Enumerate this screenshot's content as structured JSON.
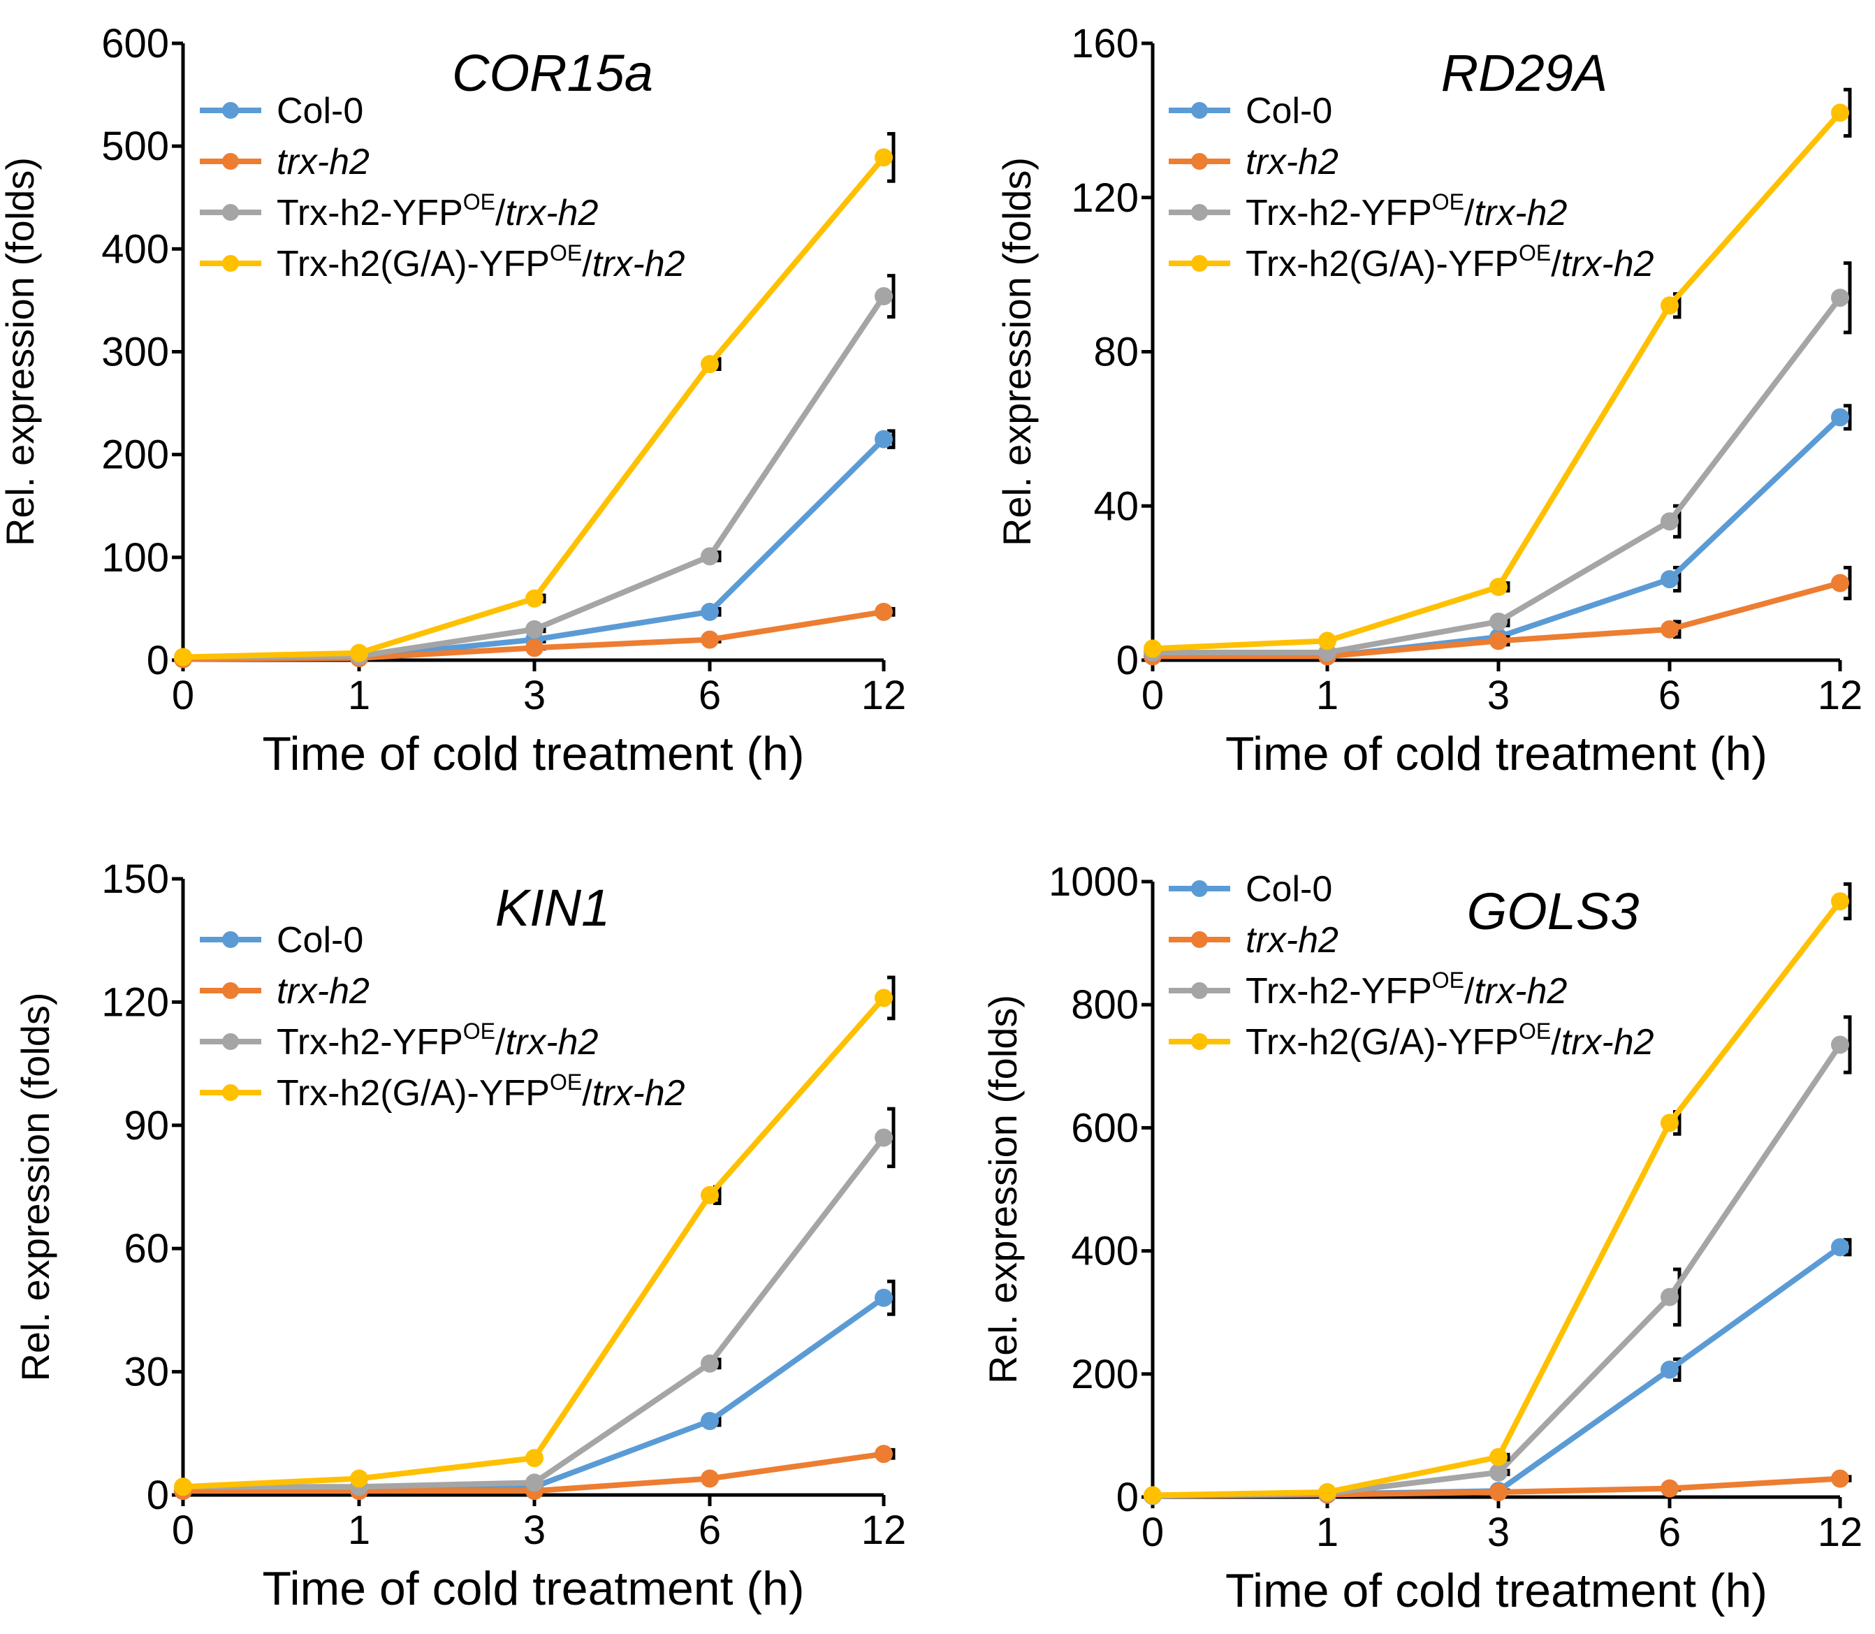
{
  "chart_data": [
    {
      "type": "line",
      "title": "COR15a",
      "xlabel": "Time of cold treatment (h)",
      "ylabel": "Rel. expression (folds)",
      "categories": [
        "0",
        "1",
        "3",
        "6",
        "12"
      ],
      "ylim": [
        0,
        600
      ],
      "yticks": [
        "0",
        "100",
        "200",
        "300",
        "400",
        "500",
        "600"
      ],
      "legend_position": "top-left",
      "series": [
        {
          "name": "Col-0",
          "name_parts": [
            "Col-0"
          ],
          "color": "#5B9BD5",
          "values": [
            2,
            3,
            20,
            47,
            215
          ],
          "errors": [
            0,
            0,
            2,
            3,
            8
          ]
        },
        {
          "name": "trx-h2",
          "name_parts": [
            "trx-h2"
          ],
          "color": "#ED7D31",
          "values": [
            1,
            2,
            12,
            20,
            47
          ],
          "errors": [
            0,
            0,
            1,
            2,
            3
          ]
        },
        {
          "name": "Trx-h2-YFPOE/trx-h2",
          "name_parts": [
            "Trx-h2-YFP",
            "OE",
            "/",
            "trx-h2"
          ],
          "color": "#A5A5A5",
          "values": [
            3,
            4,
            30,
            101,
            354
          ],
          "errors": [
            0,
            0,
            2,
            4,
            20
          ]
        },
        {
          "name": "Trx-h2(G/A)-YFPOE/trx-h2",
          "name_parts": [
            "Trx-h2(G/A)-YFP",
            "OE",
            "/",
            "trx-h2"
          ],
          "color": "#FFC000",
          "values": [
            3,
            7,
            60,
            288,
            489
          ],
          "errors": [
            0,
            0,
            3,
            5,
            23
          ]
        }
      ]
    },
    {
      "type": "line",
      "title": "RD29A",
      "xlabel": "Time of cold treatment (h)",
      "ylabel": "Rel. expression (folds)",
      "categories": [
        "0",
        "1",
        "3",
        "6",
        "12"
      ],
      "ylim": [
        0,
        160
      ],
      "yticks": [
        "0",
        "40",
        "80",
        "120",
        "160"
      ],
      "legend_position": "top-left",
      "series": [
        {
          "name": "Col-0",
          "name_parts": [
            "Col-0"
          ],
          "color": "#5B9BD5",
          "values": [
            1,
            1,
            6,
            21,
            63
          ],
          "errors": [
            0,
            0,
            1,
            3,
            3
          ]
        },
        {
          "name": "trx-h2",
          "name_parts": [
            "trx-h2"
          ],
          "color": "#ED7D31",
          "values": [
            1,
            1,
            5,
            8,
            20
          ],
          "errors": [
            0,
            0,
            1,
            2,
            4
          ]
        },
        {
          "name": "Trx-h2-YFPOE/trx-h2",
          "name_parts": [
            "Trx-h2-YFP",
            "OE",
            "/",
            "trx-h2"
          ],
          "color": "#A5A5A5",
          "values": [
            2,
            2,
            10,
            36,
            94
          ],
          "errors": [
            0,
            0,
            1,
            4,
            9
          ]
        },
        {
          "name": "Trx-h2(G/A)-YFPOE/trx-h2",
          "name_parts": [
            "Trx-h2(G/A)-YFP",
            "OE",
            "/",
            "trx-h2"
          ],
          "color": "#FFC000",
          "values": [
            3,
            5,
            19,
            92,
            142
          ],
          "errors": [
            0,
            0,
            1,
            3,
            6
          ]
        }
      ]
    },
    {
      "type": "line",
      "title": "KIN1",
      "xlabel": "Time of cold treatment (h)",
      "ylabel": "Rel. expression (folds)",
      "categories": [
        "0",
        "1",
        "3",
        "6",
        "12"
      ],
      "ylim": [
        0,
        150
      ],
      "yticks": [
        "0",
        "30",
        "60",
        "90",
        "120",
        "150"
      ],
      "legend_position": "top-left",
      "series": [
        {
          "name": "Col-0",
          "name_parts": [
            "Col-0"
          ],
          "color": "#5B9BD5",
          "values": [
            1,
            1,
            2,
            18,
            48
          ],
          "errors": [
            0,
            0,
            0,
            1,
            4
          ]
        },
        {
          "name": "trx-h2",
          "name_parts": [
            "trx-h2"
          ],
          "color": "#ED7D31",
          "values": [
            1,
            1,
            1,
            4,
            10
          ],
          "errors": [
            0,
            0,
            0,
            0,
            1
          ]
        },
        {
          "name": "Trx-h2-YFPOE/trx-h2",
          "name_parts": [
            "Trx-h2-YFP",
            "OE",
            "/",
            "trx-h2"
          ],
          "color": "#A5A5A5",
          "values": [
            2,
            2,
            3,
            32,
            87
          ],
          "errors": [
            0,
            0,
            0,
            1,
            7
          ]
        },
        {
          "name": "Trx-h2(G/A)-YFPOE/trx-h2",
          "name_parts": [
            "Trx-h2(G/A)-YFP",
            "OE",
            "/",
            "trx-h2"
          ],
          "color": "#FFC000",
          "values": [
            2,
            4,
            9,
            73,
            121
          ],
          "errors": [
            0,
            0,
            0,
            2,
            5
          ]
        }
      ]
    },
    {
      "type": "line",
      "title": "GOLS3",
      "xlabel": "Time of cold treatment (h)",
      "ylabel": "Rel. expression (folds)",
      "categories": [
        "0",
        "1",
        "3",
        "6",
        "12"
      ],
      "ylim": [
        0,
        1000
      ],
      "yticks": [
        "0",
        "200",
        "400",
        "600",
        "800",
        "1000"
      ],
      "legend_position": "top-left",
      "series": [
        {
          "name": "Col-0",
          "name_parts": [
            "Col-0"
          ],
          "color": "#5B9BD5",
          "values": [
            2,
            5,
            10,
            207,
            406
          ],
          "errors": [
            0,
            0,
            1,
            17,
            12
          ]
        },
        {
          "name": "trx-h2",
          "name_parts": [
            "trx-h2"
          ],
          "color": "#ED7D31",
          "values": [
            2,
            4,
            8,
            14,
            30
          ],
          "errors": [
            0,
            0,
            1,
            2,
            3
          ]
        },
        {
          "name": "Trx-h2-YFPOE/trx-h2",
          "name_parts": [
            "Trx-h2-YFP",
            "OE",
            "/",
            "trx-h2"
          ],
          "color": "#A5A5A5",
          "values": [
            2,
            6,
            40,
            325,
            735
          ],
          "errors": [
            0,
            0,
            3,
            45,
            45
          ]
        },
        {
          "name": "Trx-h2(G/A)-YFPOE/trx-h2",
          "name_parts": [
            "Trx-h2(G/A)-YFP",
            "OE",
            "/",
            "trx-h2"
          ],
          "color": "#FFC000",
          "values": [
            3,
            8,
            65,
            608,
            968
          ],
          "errors": [
            0,
            0,
            4,
            18,
            28
          ]
        }
      ]
    }
  ]
}
